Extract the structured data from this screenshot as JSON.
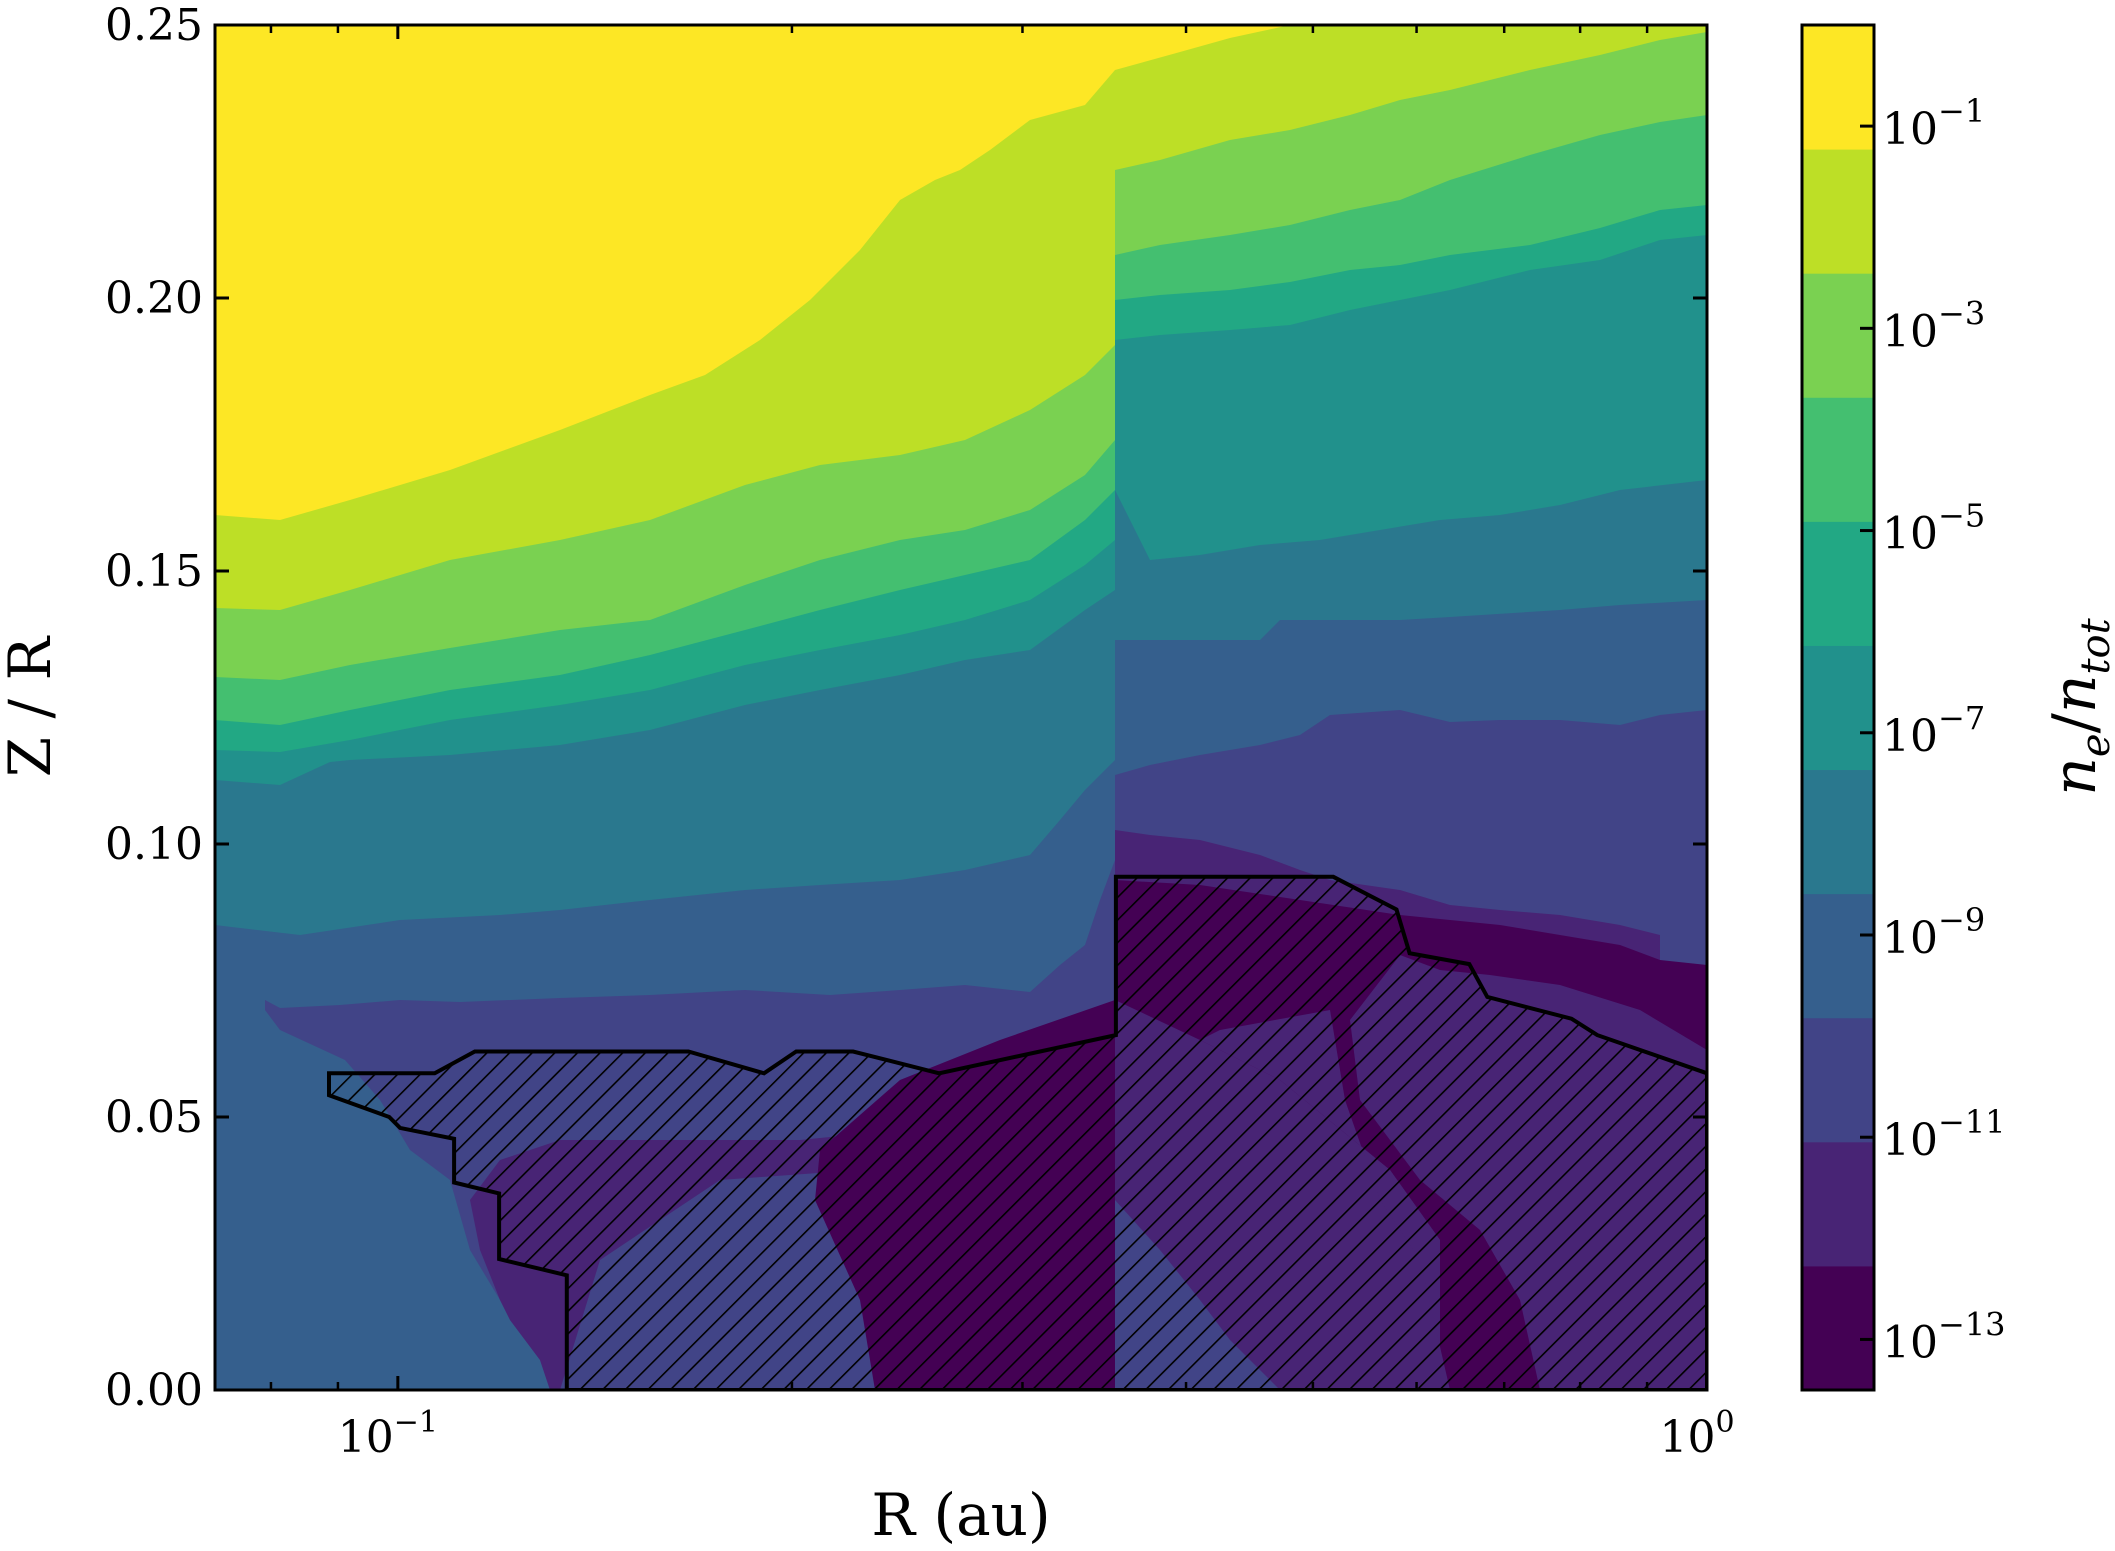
{
  "chart_data": {
    "type": "contour",
    "xlabel": "R (au)",
    "ylabel": "Z / R",
    "x_scale": "log",
    "xlim": [
      0.0725,
      1.0
    ],
    "ylim": [
      0.0,
      0.25
    ],
    "x_ticks": [
      {
        "value": 0.1,
        "base": "10",
        "exp": "−1"
      },
      {
        "value": 1.0,
        "base": "10",
        "exp": "0"
      }
    ],
    "y_ticks": [
      {
        "value": 0.0,
        "label": "0.00"
      },
      {
        "value": 0.05,
        "label": "0.05"
      },
      {
        "value": 0.1,
        "label": "0.10"
      },
      {
        "value": 0.15,
        "label": "0.15"
      },
      {
        "value": 0.2,
        "label": "0.20"
      },
      {
        "value": 0.25,
        "label": "0.25"
      }
    ],
    "colorbar": {
      "label_main": "n",
      "label_sub1": "e",
      "label_sep": "/",
      "label_main2": "n",
      "label_sub2": "tot",
      "scale": "log",
      "range_exponents": [
        -13.5,
        0
      ],
      "level_colors": [
        "#440154",
        "#482878",
        "#3e4989",
        "#31688e",
        "#26828e",
        "#1f9e89",
        "#35b779",
        "#6ece58",
        "#b5de2b",
        "#fde725"
      ],
      "level_colors_fine": [
        "#440154",
        "#482475",
        "#414487",
        "#355f8d",
        "#2a788e",
        "#21918c",
        "#22a884",
        "#44bf70",
        "#7ad151",
        "#bddf26",
        "#fde725"
      ],
      "ticks": [
        {
          "exp_value": -1,
          "base": "10",
          "exp": "−1"
        },
        {
          "exp_value": -3,
          "base": "10",
          "exp": "−3"
        },
        {
          "exp_value": -5,
          "base": "10",
          "exp": "−5"
        },
        {
          "exp_value": -7,
          "base": "10",
          "exp": "−7"
        },
        {
          "exp_value": -9,
          "base": "10",
          "exp": "−9"
        },
        {
          "exp_value": -11,
          "base": "10",
          "exp": "−11"
        },
        {
          "exp_value": -13,
          "base": "10",
          "exp": "−13"
        }
      ]
    },
    "hatched_region": {
      "description_free": true,
      "boundary": [
        [
          0.0886,
          0.058
        ],
        [
          0.1067,
          0.058
        ],
        [
          0.1145,
          0.062
        ],
        [
          0.1667,
          0.062
        ],
        [
          0.1904,
          0.058
        ],
        [
          0.2015,
          0.062
        ],
        [
          0.2227,
          0.062
        ],
        [
          0.2591,
          0.058
        ],
        [
          0.3536,
          0.065
        ],
        [
          0.3536,
          0.094
        ],
        [
          0.5183,
          0.094
        ],
        [
          0.5792,
          0.088
        ],
        [
          0.5927,
          0.08
        ],
        [
          0.6583,
          0.078
        ],
        [
          0.6795,
          0.072
        ],
        [
          0.7879,
          0.068
        ],
        [
          0.8246,
          0.065
        ],
        [
          1.0,
          0.058
        ],
        [
          1.0,
          0.0
        ],
        [
          0.1346,
          0.0
        ],
        [
          0.1346,
          0.021
        ],
        [
          0.1195,
          0.024
        ],
        [
          0.1195,
          0.036
        ],
        [
          0.1104,
          0.038
        ],
        [
          0.1104,
          0.046
        ],
        [
          0.1004,
          0.048
        ],
        [
          0.0985,
          0.05
        ],
        [
          0.0886,
          0.054
        ]
      ]
    }
  }
}
